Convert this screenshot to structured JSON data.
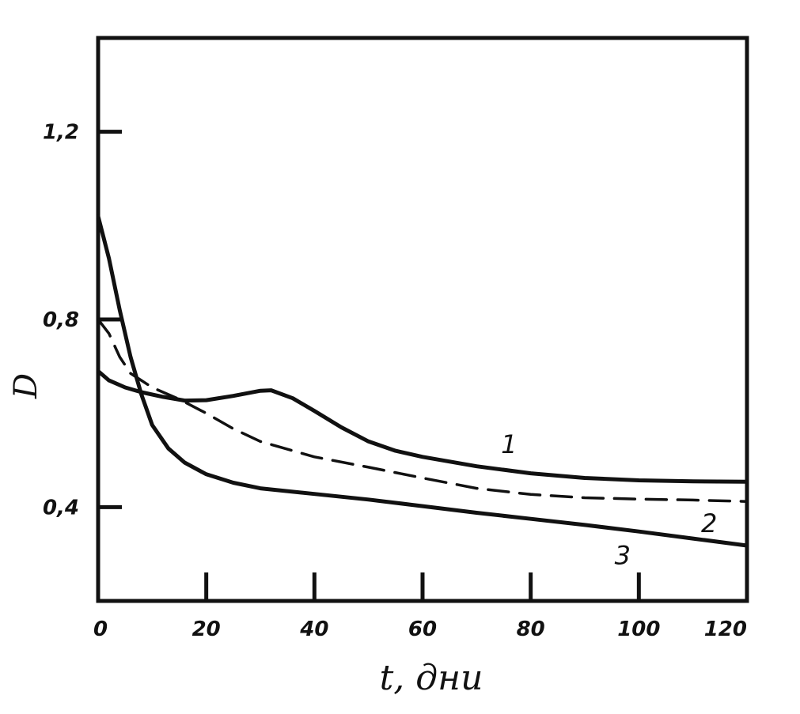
{
  "chart_data": {
    "type": "line",
    "xlabel": "t, дни",
    "ylabel": "D",
    "xlim": [
      0,
      120
    ],
    "ylim": [
      0.2,
      1.4
    ],
    "x_ticks": [
      0,
      20,
      40,
      60,
      80,
      100,
      120
    ],
    "x_tick_labels": [
      "0",
      "20",
      "40",
      "60",
      "80",
      "100",
      "120"
    ],
    "y_ticks": [
      0.4,
      0.8,
      1.2
    ],
    "y_tick_labels": [
      "0,4",
      "0,8",
      "1,2"
    ],
    "grid": false,
    "series": [
      {
        "name": "1",
        "style": "solid",
        "points": [
          [
            0,
            0.69
          ],
          [
            2,
            0.67
          ],
          [
            5,
            0.655
          ],
          [
            8,
            0.645
          ],
          [
            12,
            0.635
          ],
          [
            16,
            0.627
          ],
          [
            20,
            0.628
          ],
          [
            25,
            0.637
          ],
          [
            30,
            0.648
          ],
          [
            32,
            0.649
          ],
          [
            36,
            0.632
          ],
          [
            40,
            0.605
          ],
          [
            45,
            0.57
          ],
          [
            50,
            0.54
          ],
          [
            55,
            0.52
          ],
          [
            60,
            0.507
          ],
          [
            70,
            0.487
          ],
          [
            80,
            0.472
          ],
          [
            90,
            0.462
          ],
          [
            100,
            0.457
          ],
          [
            110,
            0.455
          ],
          [
            120,
            0.454
          ]
        ]
      },
      {
        "name": "2",
        "style": "dashed",
        "points": [
          [
            0,
            0.8
          ],
          [
            2,
            0.77
          ],
          [
            4,
            0.72
          ],
          [
            6,
            0.685
          ],
          [
            10,
            0.655
          ],
          [
            15,
            0.63
          ],
          [
            20,
            0.6
          ],
          [
            25,
            0.567
          ],
          [
            30,
            0.54
          ],
          [
            40,
            0.507
          ],
          [
            50,
            0.485
          ],
          [
            60,
            0.462
          ],
          [
            70,
            0.44
          ],
          [
            80,
            0.427
          ],
          [
            90,
            0.42
          ],
          [
            100,
            0.417
          ],
          [
            110,
            0.415
          ],
          [
            120,
            0.412
          ]
        ]
      },
      {
        "name": "3",
        "style": "solid",
        "points": [
          [
            0,
            1.02
          ],
          [
            2,
            0.93
          ],
          [
            4,
            0.82
          ],
          [
            6,
            0.72
          ],
          [
            8,
            0.64
          ],
          [
            10,
            0.575
          ],
          [
            13,
            0.525
          ],
          [
            16,
            0.495
          ],
          [
            20,
            0.47
          ],
          [
            25,
            0.452
          ],
          [
            30,
            0.44
          ],
          [
            40,
            0.428
          ],
          [
            50,
            0.416
          ],
          [
            60,
            0.402
          ],
          [
            70,
            0.388
          ],
          [
            80,
            0.375
          ],
          [
            90,
            0.362
          ],
          [
            100,
            0.348
          ],
          [
            110,
            0.333
          ],
          [
            120,
            0.318
          ]
        ]
      }
    ]
  }
}
